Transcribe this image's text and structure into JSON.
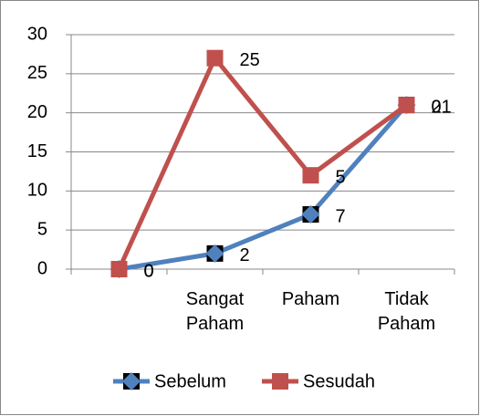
{
  "chart_data": {
    "type": "line",
    "stacked": true,
    "categories": [
      null,
      "Sangat Paham",
      "Paham",
      "Tidak Paham"
    ],
    "series": [
      {
        "name": "Sebelum",
        "color": "#4f81bd",
        "marker": "diamond",
        "values": [
          0,
          2,
          7,
          21
        ]
      },
      {
        "name": "Sesudah",
        "color": "#c0504d",
        "marker": "square",
        "values": [
          0,
          25,
          5,
          0
        ]
      }
    ],
    "ylim": [
      0,
      30
    ],
    "yticks": [
      0,
      5,
      10,
      15,
      20,
      25,
      30
    ],
    "grid": true,
    "legend": "bottom"
  }
}
